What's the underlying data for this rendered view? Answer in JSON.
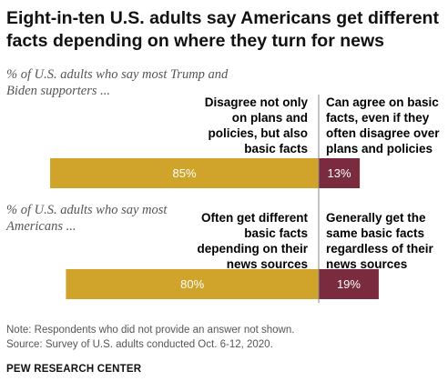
{
  "title": "Eight-in-ten U.S. adults say Americans get different facts depending on where they turn for news",
  "colors": {
    "disagree": "#d0a42a",
    "agree": "#7b2b3e",
    "divider": "#888888"
  },
  "chart_data": {
    "type": "bar",
    "orientation": "horizontal",
    "stacked": true,
    "xlim": [
      0,
      100
    ],
    "groups": [
      {
        "subhead": "% of U.S. adults who say most Trump and Biden supporters ...",
        "series": [
          {
            "name": "Disagree not only on plans and policies, but also basic facts",
            "value": 85,
            "label": "85%"
          },
          {
            "name": "Can agree on basic facts, even if they often disagree over plans and policies",
            "value": 13,
            "label": "13%"
          }
        ]
      },
      {
        "subhead": "% of U.S. adults who say most Americans ...",
        "series": [
          {
            "name": "Often get different basic facts depending on their news sources",
            "value": 80,
            "label": "80%"
          },
          {
            "name": "Generally get the same basic facts regardless of their news sources",
            "value": 19,
            "label": "19%"
          }
        ]
      }
    ]
  },
  "footer": {
    "note": "Note: Respondents who did not provide an answer not shown.",
    "source": "Source: Survey of U.S. adults conducted Oct. 6-12, 2020."
  },
  "brand": "PEW RESEARCH CENTER"
}
